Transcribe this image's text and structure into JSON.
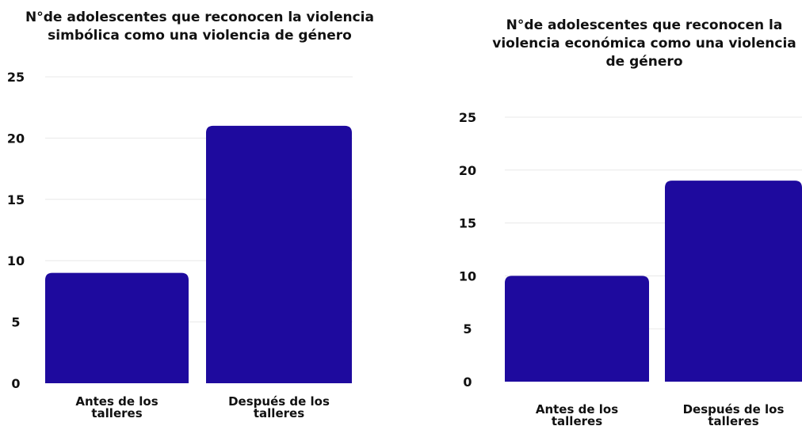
{
  "chart_data": [
    {
      "type": "bar",
      "title": [
        "N°de adolescentes que reconocen la violencia",
        "simbólica como una violencia de género"
      ],
      "categories": [
        [
          "Antes de los",
          "talleres"
        ],
        [
          "Después de los",
          "talleres"
        ]
      ],
      "values": [
        9,
        21
      ],
      "ylim": [
        0,
        25
      ],
      "yticks": [
        0,
        5,
        10,
        15,
        20,
        25
      ],
      "grid": true,
      "colors": {
        "bar": "#1e0a9e"
      }
    },
    {
      "type": "bar",
      "title": [
        "N°de adolescentes que reconocen la",
        "violencia económica como una violencia",
        "de género"
      ],
      "categories": [
        [
          "Antes de los",
          "talleres"
        ],
        [
          "Después de los",
          "talleres"
        ]
      ],
      "values": [
        10,
        19
      ],
      "ylim": [
        0,
        25
      ],
      "yticks": [
        0,
        5,
        10,
        15,
        20,
        25
      ],
      "grid": true,
      "colors": {
        "bar": "#1e0a9e"
      }
    }
  ]
}
